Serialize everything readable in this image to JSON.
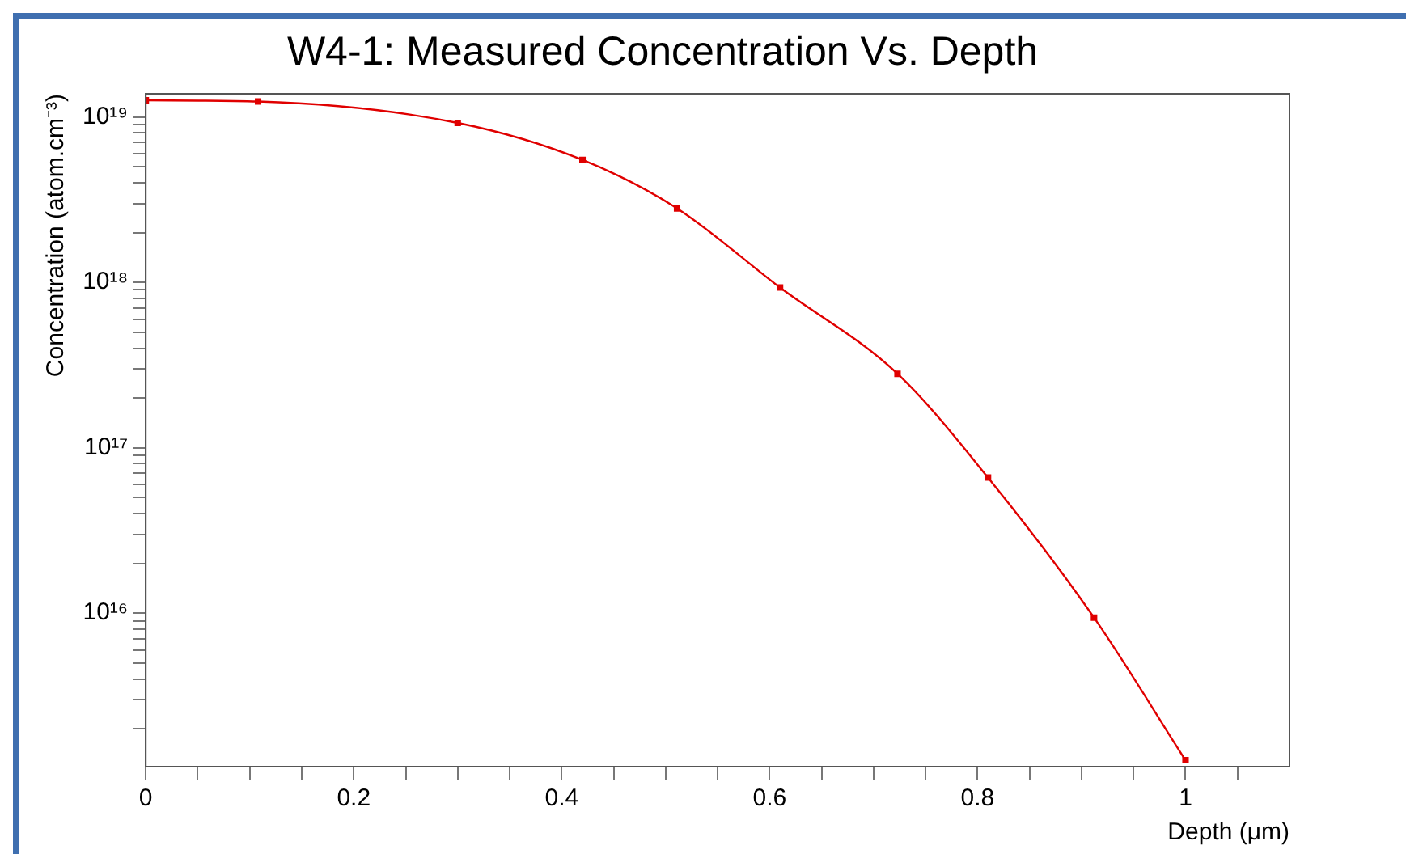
{
  "chart_data": {
    "type": "line",
    "title": "W4-1: Measured Concentration Vs. Depth",
    "xlabel": "Depth (μm)",
    "ylabel": "Concentration (atom.cm⁻³)",
    "x": [
      0,
      0.108,
      0.3,
      0.42,
      0.511,
      0.61,
      0.723,
      0.81,
      0.912,
      1.0
    ],
    "series": [
      {
        "color": "#e00000",
        "values": [
          1.26e+19,
          1.24e+19,
          9.2e+18,
          5.5e+18,
          2.8e+18,
          9.3e+17,
          2.8e+17,
          6.6e+16,
          9400000000000000.0,
          1290000000000000.0
        ]
      }
    ],
    "log": "y",
    "grid": false,
    "legend": false,
    "marker": "square",
    "line_style": "solid",
    "xlim": [
      0,
      1.1
    ],
    "xticks": [
      0,
      {
        "value": 0.05,
        "label": null
      },
      0.2,
      {
        "value": 0.1,
        "label": null
      },
      {
        "value": 0.15,
        "label": null
      },
      {
        "value": 0.25,
        "label": null
      },
      {
        "value": 0.3,
        "label": null
      },
      {
        "value": 0.35,
        "label": null
      },
      0.4,
      {
        "value": 0.45,
        "label": null
      },
      {
        "value": 0.5,
        "label": null
      },
      {
        "value": 0.55,
        "label": null
      },
      0.6,
      {
        "value": 0.65,
        "label": null
      },
      {
        "value": 0.7,
        "label": null
      },
      {
        "value": 0.75,
        "label": null
      },
      0.8,
      {
        "value": 0.85,
        "label": null
      },
      {
        "value": 0.9,
        "label": null
      },
      {
        "value": 0.95,
        "label": null
      },
      1,
      {
        "value": 1.05,
        "label": null
      }
    ],
    "ylim": [
      1180000000000000.0,
      1.38e+19
    ],
    "yticks": [
      {
        "value": 2000000000000000.0,
        "label": null
      },
      {
        "value": 3000000000000000.0,
        "label": null
      },
      {
        "value": 4000000000000000.0,
        "label": null
      },
      {
        "value": 5000000000000000.0,
        "label": null
      },
      {
        "value": 6000000000000000.0,
        "label": null
      },
      {
        "value": 7000000000000000.0,
        "label": null
      },
      {
        "value": 8000000000000000.0,
        "label": null
      },
      {
        "value": 9000000000000000.0,
        "label": null
      },
      {
        "value": 1e+16,
        "label": "10¹⁶"
      },
      {
        "value": 2e+16,
        "label": null
      },
      {
        "value": 3e+16,
        "label": null
      },
      {
        "value": 4e+16,
        "label": null
      },
      {
        "value": 5e+16,
        "label": null
      },
      {
        "value": 6e+16,
        "label": null
      },
      {
        "value": 7e+16,
        "label": null
      },
      {
        "value": 8e+16,
        "label": null
      },
      {
        "value": 9e+16,
        "label": null
      },
      {
        "value": 1e+17,
        "label": "10¹⁷"
      },
      {
        "value": 2e+17,
        "label": null
      },
      {
        "value": 3e+17,
        "label": null
      },
      {
        "value": 4e+17,
        "label": null
      },
      {
        "value": 5e+17,
        "label": null
      },
      {
        "value": 6e+17,
        "label": null
      },
      {
        "value": 7e+17,
        "label": null
      },
      {
        "value": 8e+17,
        "label": null
      },
      {
        "value": 9e+17,
        "label": null
      },
      {
        "value": 1e+18,
        "label": "10¹⁸"
      },
      {
        "value": 2e+18,
        "label": null
      },
      {
        "value": 3e+18,
        "label": null
      },
      {
        "value": 4e+18,
        "label": null
      },
      {
        "value": 5e+18,
        "label": null
      },
      {
        "value": 6e+18,
        "label": null
      },
      {
        "value": 7e+18,
        "label": null
      },
      {
        "value": 8e+18,
        "label": null
      },
      {
        "value": 9e+18,
        "label": null
      },
      {
        "value": 1e+19,
        "label": "10¹⁹"
      }
    ]
  }
}
